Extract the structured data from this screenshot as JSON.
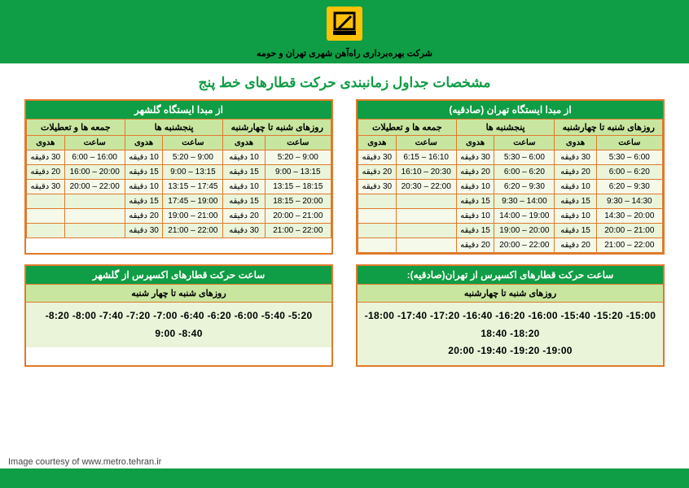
{
  "header": {
    "company": "شرکت بهره‌برداری راه‌آهن شهری تهران و حومه"
  },
  "title": "مشخصات جداول زمانبندی حرکت قطارهای خط پنج",
  "credit": "Image courtesy of www.metro.tehran.ir",
  "colgroups": [
    "روزهای شنبه تا چهارشنبه",
    "پنجشنبه ها",
    "جمعه ها و تعطیلات"
  ],
  "subcols": [
    "ساعت",
    "هدوی",
    "ساعت",
    "هدوی",
    "ساعت",
    "هدوی"
  ],
  "tehran": {
    "title": "از مبدا ایستگاه تهران (صادقیه)",
    "rows": [
      [
        "6:00 – 5:30",
        "30 دقیقه",
        "6:00 – 5:30",
        "30 دقیقه",
        "16:10 – 6:15",
        "30 دقیقه"
      ],
      [
        "6:20 – 6:00",
        "20 دقیقه",
        "6:20 – 6:00",
        "20 دقیقه",
        "20:30 – 16:10",
        "20 دقیقه"
      ],
      [
        "9:30 – 6:20",
        "10 دقیقه",
        "9:30 – 6:20",
        "10 دقیقه",
        "22:00 – 20:30",
        "30 دقیقه"
      ],
      [
        "14:30 – 9:30",
        "15 دقیقه",
        "14:00 – 9:30",
        "15 دقیقه",
        "",
        ""
      ],
      [
        "20:00 – 14:30",
        "10 دقیقه",
        "19:00 – 14:00",
        "10 دقیقه",
        "",
        ""
      ],
      [
        "21:00 – 20:00",
        "15 دقیقه",
        "20:00 – 19:00",
        "15 دقیقه",
        "",
        ""
      ],
      [
        "22:00 – 21:00",
        "20 دقیقه",
        "22:00 – 20:00",
        "20 دقیقه",
        "",
        ""
      ]
    ]
  },
  "golshahr": {
    "title": "از مبدا ایستگاه گلشهر",
    "rows": [
      [
        "9:00 – 5:20",
        "10 دقیقه",
        "9:00 – 5:20",
        "10 دقیقه",
        "16:00 – 6:00",
        "30 دقیقه"
      ],
      [
        "13:15 – 9:00",
        "15 دقیقه",
        "13:15 – 9:00",
        "15 دقیقه",
        "20:00 – 16:00",
        "20 دقیقه"
      ],
      [
        "18:15 – 13:15",
        "10 دقیقه",
        "17:45 – 13:15",
        "10 دقیقه",
        "22:00 – 20:00",
        "30 دقیقه"
      ],
      [
        "20:00 – 18:15",
        "15 دقیقه",
        "19:00 – 17:45",
        "15 دقیقه",
        "",
        ""
      ],
      [
        "21:00 – 20:00",
        "20 دقیقه",
        "21:00 – 19:00",
        "20 دقیقه",
        "",
        ""
      ],
      [
        "22:00 – 21:00",
        "30 دقیقه",
        "22:00 – 21:00",
        "30 دقیقه",
        "",
        ""
      ]
    ]
  },
  "exp_tehran": {
    "title": "ساعت حرکت قطارهای اکسپرس از تهران(صادقیه):",
    "sub": "روزهای شنبه تا چهارشنبه",
    "lines": [
      "-18:00 -17:40 -17:20 -16:40 -16:20 -16:00 -15:40 -15:20 -15:00",
      "18:40 -18:20",
      "20:00 -19:40 -19:20 -19:00"
    ]
  },
  "exp_golshahr": {
    "title": "ساعت حرکت قطارهای اکسپرس از گلشهر",
    "sub": "روزهای شنبه تا چهار شنبه",
    "lines": [
      "-8:20 -8:00 -7:40 -7:20 -7:00 -6:40 -6:20 -6:00 -5:40 -5:20",
      "9:00 -8:40"
    ]
  }
}
